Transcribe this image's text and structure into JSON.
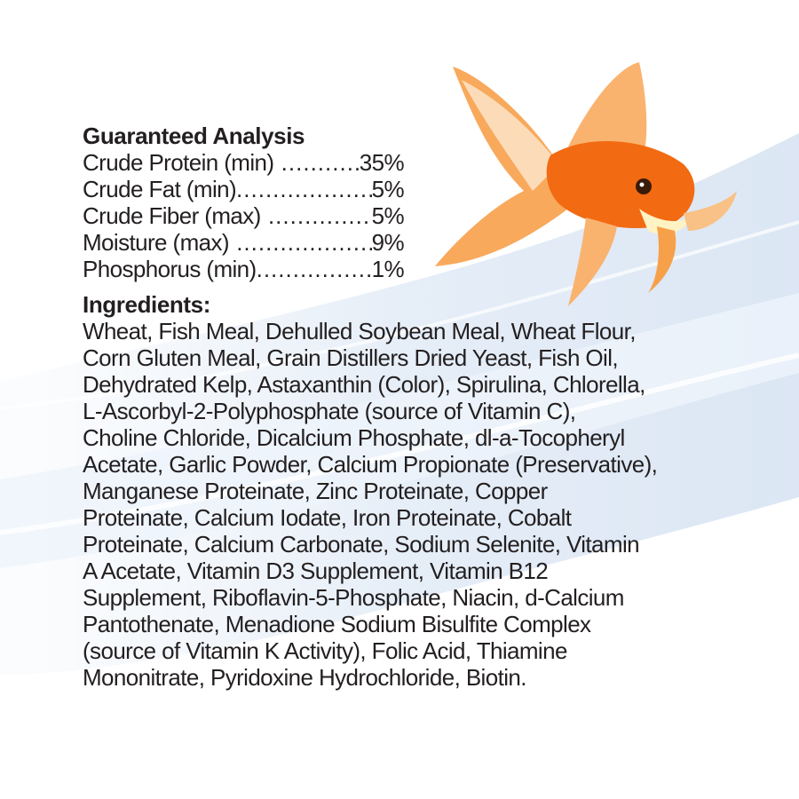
{
  "analysis": {
    "title": "Guaranteed Analysis",
    "rows": [
      {
        "label": "Crude Protein (min)",
        "value": "35%"
      },
      {
        "label": "Crude Fat (min)",
        "value": "5%"
      },
      {
        "label": "Crude Fiber (max)",
        "value": "5%"
      },
      {
        "label": "Moisture (max)",
        "value": "9%"
      },
      {
        "label": "Phosphorus (min)",
        "value": "1%"
      }
    ]
  },
  "ingredients": {
    "title": "Ingredients:",
    "lines": [
      "Wheat, Fish Meal, Dehulled Soybean Meal, Wheat Flour,",
      "Corn Gluten Meal, Grain Distillers Dried Yeast, Fish Oil,",
      "Dehydrated Kelp, Astaxanthin (Color), Spirulina, Chlorella,",
      "L-Ascorbyl-2-Polyphosphate (source of Vitamin C),",
      "Choline Chloride, Dicalcium Phosphate, dl-a-Tocopheryl",
      "Acetate, Garlic Powder, Calcium Propionate (Preservative),",
      "Manganese Proteinate, Zinc Proteinate, Copper",
      "Proteinate, Calcium Iodate, Iron Proteinate, Cobalt",
      "Proteinate, Calcium Carbonate, Sodium Selenite, Vitamin",
      "A Acetate, Vitamin D3 Supplement, Vitamin B12",
      "Supplement, Riboflavin-5-Phosphate, Niacin, d-Calcium",
      "Pantothenate, Menadione Sodium Bisulfite Complex",
      "(source of Vitamin K Activity), Folic Acid, Thiamine",
      "Mononitrate, Pyridoxine Hydrochloride, Biotin."
    ]
  },
  "colors": {
    "text": "#231f20",
    "water": "#c9dcef",
    "fish": "#f26a12"
  },
  "illustration": {
    "subject": "goldfish-icon",
    "background": "water-splash"
  }
}
